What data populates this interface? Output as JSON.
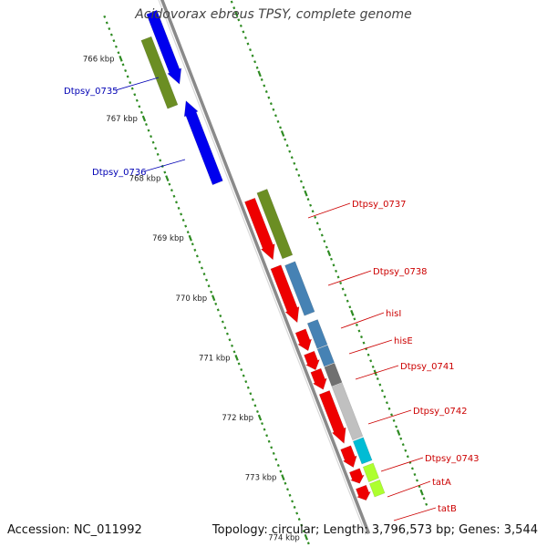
{
  "title": "Acidovorax ebreus TPSY, complete genome",
  "footer": {
    "accession": "Accession: NC_011992",
    "summary": "Topology: circular; Length: 3,796,573 bp; Genes: 3,544"
  },
  "colors": {
    "backbone": "#8a8a8a",
    "tick": "#2e8b22",
    "left_label": "#0000b4",
    "right_label": "#cc0000"
  },
  "ruler": [
    {
      "label": "766 kbp",
      "kbp": 766
    },
    {
      "label": "767 kbp",
      "kbp": 767
    },
    {
      "label": "768 kbp",
      "kbp": 768
    },
    {
      "label": "769 kbp",
      "kbp": 769
    },
    {
      "label": "770 kbp",
      "kbp": 770
    },
    {
      "label": "771 kbp",
      "kbp": 771
    },
    {
      "label": "772 kbp",
      "kbp": 772
    },
    {
      "label": "773 kbp",
      "kbp": 773
    },
    {
      "label": "774 kbp",
      "kbp": 774
    }
  ],
  "labels": [
    {
      "text": "Dtpsy_0735",
      "side": "left"
    },
    {
      "text": "Dtpsy_0736",
      "side": "left"
    },
    {
      "text": "Dtpsy_0737",
      "side": "right"
    },
    {
      "text": "Dtpsy_0738",
      "side": "right"
    },
    {
      "text": "hisI",
      "side": "right"
    },
    {
      "text": "hisE",
      "side": "right"
    },
    {
      "text": "Dtpsy_0741",
      "side": "right"
    },
    {
      "text": "Dtpsy_0742",
      "side": "right"
    },
    {
      "text": "Dtpsy_0743",
      "side": "right"
    },
    {
      "text": "tatA",
      "side": "right"
    },
    {
      "text": "tatB",
      "side": "right"
    }
  ],
  "features": [
    {
      "name": "cds-0734-top",
      "lane": "L1",
      "start_kbp": 765.5,
      "end_kbp": 766.7,
      "color": "#0000ee",
      "strand": "+"
    },
    {
      "name": "cog-0735",
      "lane": "L2",
      "start_kbp": 765.85,
      "end_kbp": 766.99,
      "color": "#6b8e23",
      "strand": "."
    },
    {
      "name": "cds-0736",
      "lane": "L1",
      "start_kbp": 766.98,
      "end_kbp": 768.35,
      "color": "#0000ee",
      "strand": "-"
    },
    {
      "name": "cds-0737",
      "lane": "R1",
      "start_kbp": 768.78,
      "end_kbp": 769.78,
      "color": "#ee0000",
      "strand": "+"
    },
    {
      "name": "cog-0737",
      "lane": "R2",
      "start_kbp": 768.72,
      "end_kbp": 769.82,
      "color": "#6b8e23",
      "strand": "."
    },
    {
      "name": "cds-0738",
      "lane": "R1",
      "start_kbp": 769.9,
      "end_kbp": 770.83,
      "color": "#ee0000",
      "strand": "+"
    },
    {
      "name": "cog-0738",
      "lane": "R2",
      "start_kbp": 769.93,
      "end_kbp": 770.77,
      "color": "#4682b4",
      "strand": "."
    },
    {
      "name": "cds-hisI",
      "lane": "R1",
      "start_kbp": 770.97,
      "end_kbp": 771.3,
      "color": "#ee0000",
      "strand": "+"
    },
    {
      "name": "cog-hisI",
      "lane": "R2",
      "start_kbp": 770.9,
      "end_kbp": 771.32,
      "color": "#4682b4",
      "strand": "."
    },
    {
      "name": "cds-hisE",
      "lane": "R1",
      "start_kbp": 771.34,
      "end_kbp": 771.62,
      "color": "#ee0000",
      "strand": "+"
    },
    {
      "name": "cog-hisE",
      "lane": "R2",
      "start_kbp": 771.33,
      "end_kbp": 771.62,
      "color": "#4682b4",
      "strand": "."
    },
    {
      "name": "cds-0741",
      "lane": "R1",
      "start_kbp": 771.63,
      "end_kbp": 771.95,
      "color": "#ee0000",
      "strand": "+"
    },
    {
      "name": "cog-0741",
      "lane": "R2",
      "start_kbp": 771.63,
      "end_kbp": 771.95,
      "color": "#707070",
      "strand": "."
    },
    {
      "name": "cds-0742",
      "lane": "R1",
      "start_kbp": 772.0,
      "end_kbp": 772.85,
      "color": "#ee0000",
      "strand": "+"
    },
    {
      "name": "cog-0742",
      "lane": "R2",
      "start_kbp": 771.96,
      "end_kbp": 772.85,
      "color": "#c0c0c0",
      "strand": "."
    },
    {
      "name": "cds-0743",
      "lane": "R1",
      "start_kbp": 772.92,
      "end_kbp": 773.25,
      "color": "#ee0000",
      "strand": "+"
    },
    {
      "name": "cog-0743",
      "lane": "R2",
      "start_kbp": 772.87,
      "end_kbp": 773.25,
      "color": "#00bcd4",
      "strand": "."
    },
    {
      "name": "cds-tatA",
      "lane": "R1",
      "start_kbp": 773.3,
      "end_kbp": 773.52,
      "color": "#ee0000",
      "strand": "+"
    },
    {
      "name": "cog-tatA",
      "lane": "R2",
      "start_kbp": 773.3,
      "end_kbp": 773.55,
      "color": "#adff2f",
      "strand": "."
    },
    {
      "name": "cds-tatB",
      "lane": "R1",
      "start_kbp": 773.58,
      "end_kbp": 773.8,
      "color": "#ee0000",
      "strand": "+"
    },
    {
      "name": "cog-tatB",
      "lane": "R2",
      "start_kbp": 773.58,
      "end_kbp": 773.8,
      "color": "#adff2f",
      "strand": "."
    }
  ]
}
